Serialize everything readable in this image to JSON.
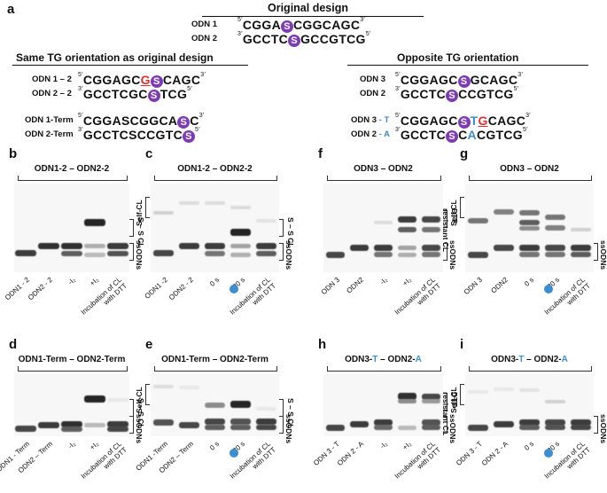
{
  "panel_a": {
    "letter": "a",
    "original_title": "Original design",
    "same_title": "Same TG orientation as original design",
    "opposite_title": "Opposite TG orientation",
    "labels": {
      "odn1": "ODN 1",
      "odn2": "ODN 2",
      "odn1_2": "ODN 1 – 2",
      "odn2_2": "ODN 2 – 2",
      "odn1_term": "ODN 1-Term",
      "odn2_term": "ODN 2-Term",
      "odn3": "ODN 3",
      "odn2b": "ODN 2",
      "odn3t_a": "ODN 3",
      "odn3t_b": " - T",
      "odn2a_a": "ODN 2",
      "odn2a_b": " - A"
    },
    "ends": {
      "five": "5′",
      "three": "3′"
    },
    "s": "S",
    "sequences": {
      "orig1": [
        "CGGA",
        "S",
        "CGGCAGC"
      ],
      "orig2": [
        "GCCTC",
        "S",
        "GCCGTCG"
      ],
      "same1": [
        "CGGAGC",
        "G",
        "S",
        "CAGC"
      ],
      "same2": [
        "GCCTCGC",
        "S",
        "TCG"
      ],
      "term1": [
        "CGGASCGGCA",
        "S",
        "C"
      ],
      "term2": [
        "GCCTCSCCGTC",
        "S"
      ],
      "opp1": [
        "CGGAGC",
        "S",
        "GCAGC"
      ],
      "opp2": [
        "GCCTC",
        "S",
        "CCGTCG"
      ],
      "oppt1": [
        "CGGAGC",
        "S",
        "T",
        "G",
        "CAGC"
      ],
      "oppt2": [
        "GCCTC",
        "S",
        "C",
        "A",
        "CGTCG"
      ]
    }
  },
  "panels": {
    "b": {
      "letter": "b",
      "title": "ODN1-2 – ODN2-2",
      "lanes": [
        "ODN1 - 2",
        "ODN2 - 2",
        "-I₂",
        "+I₂",
        "Incubation of CL\nwith DTT"
      ],
      "right_top": "S – S CL",
      "right_bottom": "ssODNs"
    },
    "c": {
      "letter": "c",
      "title": "ODN1-2 – ODN2-2",
      "lanes": [
        "ODN1 -2",
        "ODN2 - 2",
        "0 s",
        "30 s",
        "Incubation of CL\nwith DTT"
      ],
      "left_top": "Self-CL",
      "right_top": "S – S CL",
      "right_bottom": "ssODNs"
    },
    "d": {
      "letter": "d",
      "title": "ODN1-Term – ODN2-Term",
      "lanes": [
        "ODN1 - Term",
        "ODN2 – Term",
        "-I₂",
        "+I₂",
        "Incubation of CL\nwith DTT"
      ],
      "right_top": "S – S CL",
      "right_bottom": "ssODNs"
    },
    "e": {
      "letter": "e",
      "title": "ODN1-Term – ODN2-Term",
      "lanes": [
        "ODN1 -Term",
        "ODN2 – Term",
        "0 s",
        "30 s",
        "Incubation of CL\nwith DTT"
      ],
      "left_top": "Self-CL",
      "right_top": "S – S CL",
      "right_bottom": "ssODNs"
    },
    "f": {
      "letter": "f",
      "title": "ODN3 – ODN2",
      "lanes": [
        "ODN 3",
        "ODN2",
        "-I₂",
        "+I₂",
        "Incubation of CL\nwith DTT"
      ],
      "right_top": "DTT-\nresistant CL",
      "right_bottom": "ssODNs"
    },
    "g": {
      "letter": "g",
      "title": "ODN3 – ODN2",
      "lanes": [
        "ODN 3",
        "ODN2",
        "0 s",
        "30 s",
        "Incubation of CL\nwith DTT"
      ],
      "left_top": "Self-CL",
      "right_bottom": "ssODNs"
    },
    "h": {
      "letter": "h",
      "title_a": "ODN3-",
      "title_b": "T",
      "title_c": " – ODN2-",
      "title_d": "A",
      "lanes": [
        "ODN 3 - T",
        "ODN 2 - A",
        "-I₂",
        "+I₂",
        "Incubation of CL\nwith DTT"
      ],
      "right_top": "DTT-\nresistant CL",
      "right_bottom": "ssODNs"
    },
    "i": {
      "letter": "i",
      "title_a": "ODN3-",
      "title_b": "T",
      "title_c": " – ODN2-",
      "title_d": "A",
      "lanes": [
        "ODN 3 - T",
        "ODN 2 - A",
        "0 s",
        "30 s",
        "Incubation of CL\nwith DTT"
      ],
      "left_top": "Self-CL",
      "right_bottom": "ssODNs"
    }
  },
  "colors": {
    "purple": "#7e3bb6",
    "red": "#e03030",
    "blue": "#3c8ed0"
  }
}
